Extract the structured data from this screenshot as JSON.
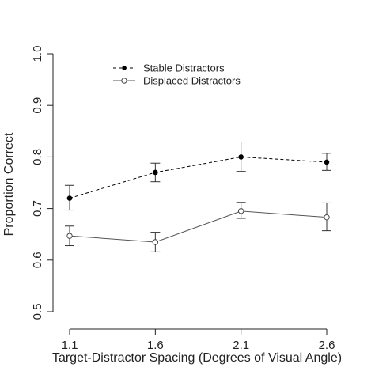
{
  "chart_data": {
    "type": "line",
    "title": "",
    "xlabel": "Target-Distractor Spacing (Degrees of Visual Angle)",
    "ylabel": "Proportion Correct",
    "x": [
      1.1,
      1.6,
      2.1,
      2.6
    ],
    "x_tick_labels": [
      "1.1",
      "1.6",
      "2.1",
      "2.6"
    ],
    "ylim": [
      0.5,
      1.0
    ],
    "y_ticks": [
      0.5,
      0.6,
      0.7,
      0.8,
      0.9,
      1.0
    ],
    "y_tick_labels": [
      "0.5",
      "0.6",
      "0.7",
      "0.8",
      "0.9",
      "1.0"
    ],
    "grid": false,
    "legend_position": "top-left",
    "series": [
      {
        "name": "Stable Distractors",
        "marker": "filled-circle",
        "line_style": "dashed",
        "color": "#000000",
        "values": [
          0.72,
          0.77,
          0.8,
          0.79
        ],
        "error_low": [
          0.697,
          0.752,
          0.772,
          0.774
        ],
        "error_high": [
          0.745,
          0.788,
          0.829,
          0.807
        ]
      },
      {
        "name": "Displaced Distractors",
        "marker": "open-circle",
        "line_style": "solid",
        "color": "#555555",
        "values": [
          0.647,
          0.635,
          0.695,
          0.683
        ],
        "error_low": [
          0.628,
          0.616,
          0.681,
          0.657
        ],
        "error_high": [
          0.666,
          0.654,
          0.712,
          0.711
        ]
      }
    ]
  }
}
